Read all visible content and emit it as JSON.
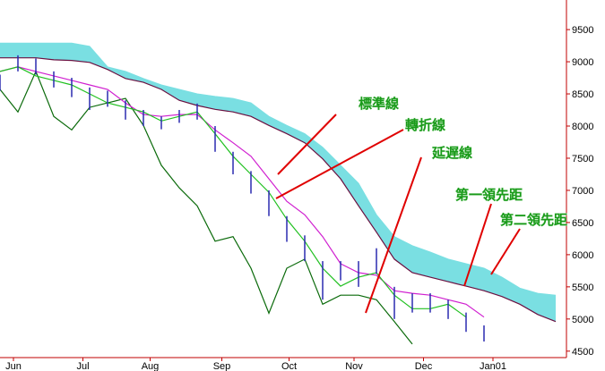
{
  "chart_data": {
    "type": "ichimoku",
    "x": [
      0,
      8,
      16,
      24,
      32,
      40,
      48,
      56,
      64,
      72,
      80,
      88,
      96,
      104,
      112,
      120,
      128,
      136,
      144,
      152,
      160,
      168,
      176,
      184,
      192,
      200,
      208,
      216,
      224,
      232,
      240,
      248
    ],
    "xlim": [
      0,
      252.8
    ],
    "xticks": [
      {
        "value": 6,
        "label": "Jun"
      },
      {
        "value": 37,
        "label": "Jul"
      },
      {
        "value": 67,
        "label": "Aug"
      },
      {
        "value": 99,
        "label": "Sep"
      },
      {
        "value": 129,
        "label": "Oct"
      },
      {
        "value": 158,
        "label": "Nov"
      },
      {
        "value": 189,
        "label": "Dec"
      },
      {
        "value": 220,
        "label": "Jan01"
      }
    ],
    "ylim": [
      4400,
      9960
    ],
    "yticks": [
      4500,
      5000,
      5500,
      6000,
      6500,
      7000,
      7500,
      8000,
      8500,
      9000,
      9500
    ],
    "series": [
      {
        "color": "#7adfe2",
        "values": [
          9290,
          9290,
          9290,
          9290,
          9290,
          9240,
          8920,
          8850,
          8740,
          8640,
          8570,
          8500,
          8460,
          8430,
          8360,
          8150,
          8010,
          7880,
          7670,
          7390,
          7110,
          6620,
          6280,
          6140,
          6040,
          5930,
          5860,
          5790,
          5650,
          5480,
          5400,
          5370
        ]
      },
      {
        "color": "#6a1040",
        "values": [
          9060,
          9060,
          9060,
          9030,
          9020,
          8990,
          8880,
          8740,
          8680,
          8570,
          8400,
          8320,
          8260,
          8220,
          8150,
          8010,
          7880,
          7740,
          7490,
          7180,
          6760,
          6350,
          5930,
          5720,
          5650,
          5580,
          5510,
          5440,
          5350,
          5230,
          5070,
          4960
        ]
      },
      {
        "color": "#d020d0",
        "values": [
          8850,
          8920,
          8850,
          8780,
          8710,
          8640,
          8570,
          8360,
          8180,
          8150,
          8180,
          8180,
          7940,
          7740,
          7530,
          7180,
          6830,
          6620,
          6280,
          5860,
          5720,
          5680,
          5440,
          5400,
          5370,
          5300,
          5230,
          5030,
          null,
          null,
          null,
          null
        ]
      },
      {
        "color": "#20c020",
        "values": [
          8850,
          8920,
          8780,
          8710,
          8640,
          8500,
          8360,
          8290,
          8220,
          8080,
          8150,
          8220,
          7880,
          7530,
          7250,
          6970,
          6550,
          6210,
          5790,
          5510,
          5650,
          5720,
          5370,
          5160,
          5160,
          5230,
          5030,
          null,
          null,
          null,
          null,
          null
        ]
      },
      {
        "color": "#0a6a0a",
        "values": [
          8570,
          8220,
          8850,
          8150,
          7940,
          8290,
          8360,
          8430,
          8010,
          7390,
          7040,
          6760,
          6210,
          6280,
          5790,
          5090,
          5790,
          5930,
          5230,
          5370,
          5370,
          5300,
          4960,
          4610,
          null,
          null,
          null,
          null,
          null,
          null,
          null,
          null
        ]
      },
      {
        "color": "#2a2ab0",
        "high": [
          8800,
          9100,
          9050,
          8850,
          8750,
          8600,
          8550,
          8400,
          8250,
          8150,
          8250,
          8350,
          8000,
          7600,
          7300,
          7000,
          6600,
          6300,
          5900,
          5900,
          5900,
          6100,
          5500,
          5400,
          5400,
          5300,
          5100,
          4900,
          null,
          null,
          null,
          null
        ],
        "low": [
          8550,
          8850,
          8800,
          8600,
          8450,
          8250,
          8300,
          8100,
          8000,
          7950,
          8050,
          8100,
          7600,
          7250,
          6950,
          6600,
          6200,
          5900,
          5300,
          5600,
          5500,
          5700,
          5000,
          5100,
          5100,
          5000,
          4800,
          4650,
          null,
          null,
          null,
          null
        ]
      }
    ],
    "annotations": [
      "標準線",
      "轉折線",
      "延遅線",
      "第一領先距",
      "第二領先距"
    ]
  }
}
